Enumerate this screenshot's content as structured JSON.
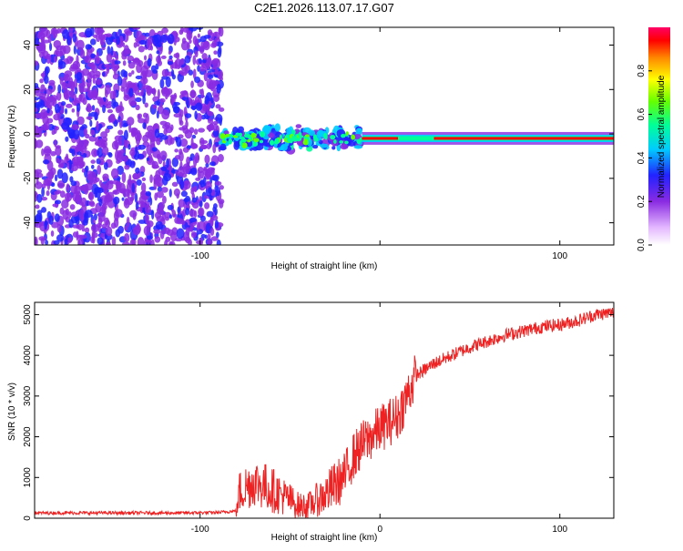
{
  "title": "C2E1.2026.113.07.17.G07",
  "chart_data": [
    {
      "type": "heatmap",
      "title": "C2E1.2026.113.07.17.G07",
      "xlabel": "Height of straight line (km)",
      "ylabel": "Frequency (Hz)",
      "xlim": [
        -192,
        130
      ],
      "ylim": [
        -50,
        48
      ],
      "xticks": [
        -100,
        0,
        100
      ],
      "xtick_labels": [
        "-100",
        "",
        "100"
      ],
      "yticks": [
        -40,
        -20,
        0,
        20,
        40
      ],
      "ytick_labels": [
        "-40",
        "-20",
        "0",
        "20",
        "40"
      ],
      "colorbar": {
        "label": "Normalized spectral amplitude",
        "range": [
          0.0,
          1.0
        ],
        "ticks": [
          0.0,
          0.2,
          0.4,
          0.6,
          0.8
        ],
        "tick_labels": [
          "0.0",
          "0.2",
          "0.4",
          "0.6",
          "0.8"
        ],
        "colormap": "rainbow (violet to red)"
      },
      "regions": [
        {
          "name": "noise",
          "x_range": [
            -192,
            -88
          ],
          "freq_range": [
            -50,
            48
          ],
          "amplitude": 0.1
        },
        {
          "name": "signal-scatter",
          "x_range": [
            -88,
            -10
          ],
          "center_freq": -2,
          "spread_hz": 8,
          "amplitude": 0.3
        },
        {
          "name": "carrier-line",
          "x_range": [
            -10,
            130
          ],
          "center_freq": -2,
          "spread_hz": 2,
          "amplitude": 0.9
        }
      ]
    },
    {
      "type": "line",
      "xlabel": "Height of straight line (km)",
      "ylabel": "SNR (10 * v/v)",
      "xlim": [
        -192,
        130
      ],
      "ylim": [
        0,
        5300
      ],
      "xticks": [
        -100,
        0,
        100
      ],
      "xtick_labels": [
        "-100",
        "0",
        "100"
      ],
      "yticks": [
        0,
        1000,
        2000,
        3000,
        4000,
        5000
      ],
      "ytick_labels": [
        "0",
        "1000",
        "2000",
        "3000",
        "4000",
        "5000"
      ],
      "series": [
        {
          "name": "SNR",
          "color": "#ee2222",
          "x": [
            -192,
            -170,
            -150,
            -130,
            -110,
            -90,
            -80,
            -78,
            -70,
            -60,
            -50,
            -45,
            -40,
            -30,
            -20,
            -15,
            -10,
            0,
            10,
            15,
            20,
            30,
            40,
            50,
            60,
            70,
            80,
            90,
            100,
            110,
            120,
            130
          ],
          "y": [
            130,
            130,
            130,
            130,
            130,
            140,
            180,
            650,
            900,
            700,
            450,
            300,
            300,
            600,
            1000,
            1500,
            1800,
            2200,
            2500,
            3000,
            3500,
            3800,
            4000,
            4200,
            4350,
            4500,
            4600,
            4700,
            4750,
            4850,
            5000,
            5050
          ]
        }
      ]
    }
  ]
}
